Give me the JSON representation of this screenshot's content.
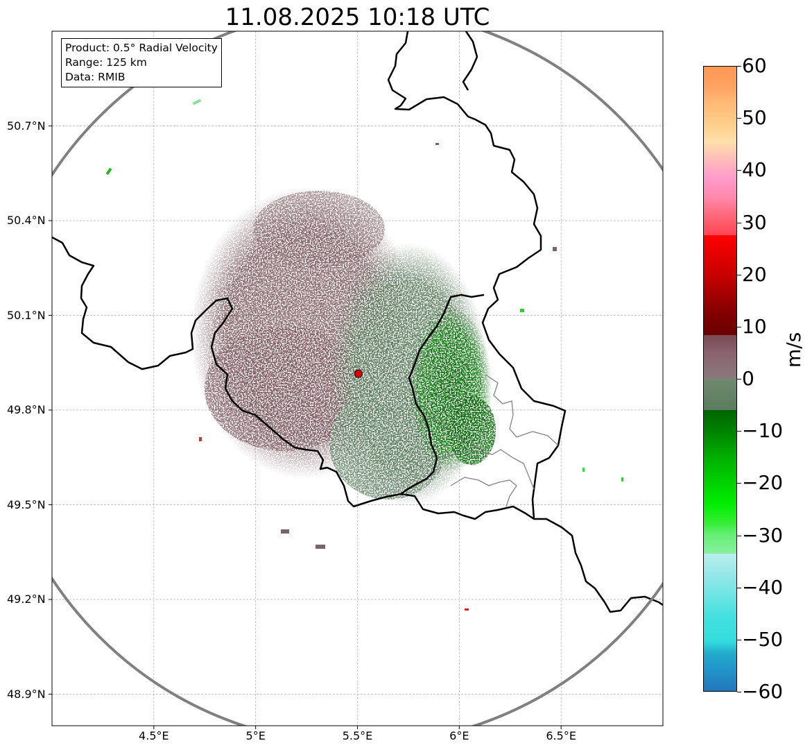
{
  "title": "11.08.2025 10:18 UTC",
  "info_box": {
    "product": "Product: 0.5° Radial Velocity",
    "range": "Range: 125 km",
    "data": "Data: RMIB"
  },
  "map": {
    "lat_labels": [
      "50.7°N",
      "50.4°N",
      "50.1°N",
      "49.8°N",
      "49.5°N",
      "49.2°N",
      "48.9°N"
    ],
    "lon_labels": [
      "4.5°E",
      "5°E",
      "5.5°E",
      "6°E",
      "6.5°E"
    ],
    "extent": {
      "lon_min": 4.0,
      "lon_max": 7.0,
      "lat_min": 48.8,
      "lat_max": 51.0
    },
    "radar_site": {
      "lon": 5.505,
      "lat": 49.915
    },
    "range_ring_km": 125,
    "colors": {
      "grid": "#b0b0b0",
      "border": "#000000",
      "ring": "#808080",
      "radar_marker": "#e00000"
    }
  },
  "colorbar": {
    "unit": "m/s",
    "ticks": [
      "60",
      "50",
      "40",
      "30",
      "20",
      "10",
      "0",
      "−10",
      "−20",
      "−30",
      "−40",
      "−50",
      "−60"
    ],
    "tick_values": [
      60,
      50,
      40,
      30,
      20,
      10,
      0,
      -10,
      -20,
      -30,
      -40,
      -50,
      -60
    ],
    "range": [
      -60,
      60
    ]
  }
}
